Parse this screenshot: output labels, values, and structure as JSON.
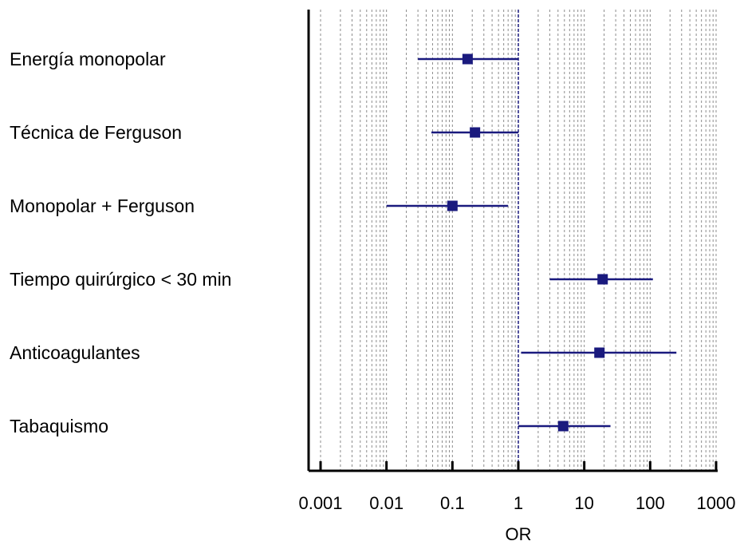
{
  "chart_data": {
    "type": "forest",
    "xlabel": "OR",
    "xscale": "log",
    "xlim": [
      0.001,
      1000
    ],
    "x_ticks": [
      {
        "value": 0.001,
        "label": "0.001"
      },
      {
        "value": 0.01,
        "label": "0.01"
      },
      {
        "value": 0.1,
        "label": "0.1"
      },
      {
        "value": 1,
        "label": "1"
      },
      {
        "value": 10,
        "label": "10"
      },
      {
        "value": 100,
        "label": "100"
      },
      {
        "value": 1000,
        "label": "1000"
      }
    ],
    "reference_line": 1,
    "grid": true,
    "colors": {
      "series": "#1a1a7e",
      "grid": "#8c8c8c",
      "axis": "#000000",
      "reference": "#1a1a7e"
    },
    "rows": [
      {
        "label": "Energía monopolar",
        "or": 0.17,
        "ci_low": 0.03,
        "ci_high": 1.0
      },
      {
        "label": "Técnica de Ferguson",
        "or": 0.22,
        "ci_low": 0.048,
        "ci_high": 1.0
      },
      {
        "label": "Monopolar + Ferguson",
        "or": 0.1,
        "ci_low": 0.01,
        "ci_high": 0.7
      },
      {
        "label": "Tiempo quirúrgico < 30 min",
        "or": 19,
        "ci_low": 3,
        "ci_high": 110
      },
      {
        "label": "Anticoagulantes",
        "or": 17,
        "ci_low": 1.1,
        "ci_high": 250
      },
      {
        "label": "Tabaquismo",
        "or": 4.8,
        "ci_low": 1.0,
        "ci_high": 25
      }
    ]
  }
}
